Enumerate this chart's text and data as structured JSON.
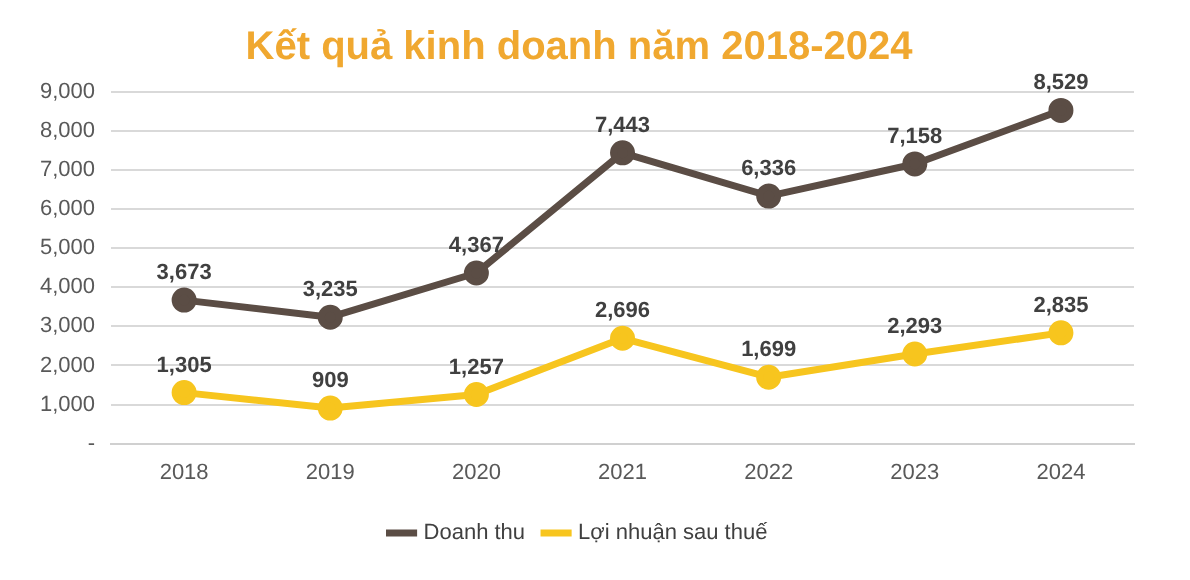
{
  "chart_data": {
    "type": "line",
    "title": "Kết quả kinh doanh năm 2018-2024",
    "categories": [
      "2018",
      "2019",
      "2020",
      "2021",
      "2022",
      "2023",
      "2024"
    ],
    "series": [
      {
        "name": "Doanh thu",
        "color": "#5b4d45",
        "values": [
          3673,
          3235,
          4367,
          7443,
          6336,
          7158,
          8529
        ],
        "value_labels": [
          "3,673",
          "3,235",
          "4,367",
          "7,443",
          "6,336",
          "7,158",
          "8,529"
        ]
      },
      {
        "name": "Lợi nhuận sau thuế",
        "color": "#f7c51e",
        "values": [
          1305,
          909,
          1257,
          2696,
          1699,
          2293,
          2835
        ],
        "value_labels": [
          "1,305",
          "909",
          "1,257",
          "2,696",
          "1,699",
          "2,293",
          "2,835"
        ]
      }
    ],
    "ylim": [
      0,
      9000
    ],
    "yticks": [
      {
        "value": 0,
        "label": "-"
      },
      {
        "value": 1000,
        "label": "1,000"
      },
      {
        "value": 2000,
        "label": "2,000"
      },
      {
        "value": 3000,
        "label": "3,000"
      },
      {
        "value": 4000,
        "label": "4,000"
      },
      {
        "value": 5000,
        "label": "5,000"
      },
      {
        "value": 6000,
        "label": "6,000"
      },
      {
        "value": 7000,
        "label": "7,000"
      },
      {
        "value": 8000,
        "label": "8,000"
      },
      {
        "value": 9000,
        "label": "9,000"
      }
    ],
    "grid": "y",
    "legend": "bottom",
    "marker": "circle",
    "line_style": "solid"
  }
}
